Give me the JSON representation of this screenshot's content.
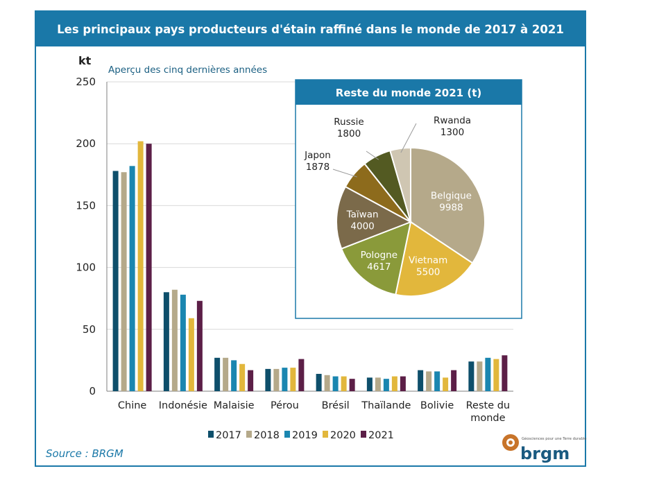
{
  "title": "Les principaux pays producteurs d'étain raffiné dans le monde de 2017 à 2021",
  "source": "Source : BRGM",
  "logo": {
    "name": "brgm",
    "tagline": "Géosciences pour une Terre durable"
  },
  "colors": {
    "frame": "#1a78a8",
    "gridline": "#d9d9d9",
    "axis": "#7f7f7f"
  },
  "chart_data": [
    {
      "type": "bar",
      "unit_label": "kt",
      "subtitle": "Aperçu des cinq dernières années",
      "ylim": [
        0,
        250
      ],
      "yticks": [
        0,
        50,
        100,
        150,
        200,
        250
      ],
      "grid": true,
      "legend_position": "bottom",
      "categories": [
        "Chine",
        "Indonésie",
        "Malaisie",
        "Pérou",
        "Brésil",
        "Thaïlande",
        "Bolivie",
        "Reste du monde"
      ],
      "series": [
        {
          "name": "2017",
          "color": "#0e4f6b",
          "values": [
            178,
            80,
            27,
            18,
            14,
            11,
            17,
            24
          ]
        },
        {
          "name": "2018",
          "color": "#b5a98a",
          "values": [
            177,
            82,
            27,
            18,
            13,
            11,
            16,
            24
          ]
        },
        {
          "name": "2019",
          "color": "#1a86b0",
          "values": [
            182,
            78,
            25,
            19,
            12,
            10,
            16,
            27
          ]
        },
        {
          "name": "2020",
          "color": "#e2b73c",
          "values": [
            202,
            59,
            22,
            19,
            12,
            12,
            11,
            26
          ]
        },
        {
          "name": "2021",
          "color": "#5c1f47",
          "values": [
            200,
            73,
            17,
            26,
            10,
            12,
            17,
            29
          ]
        }
      ]
    },
    {
      "type": "pie",
      "title": "Reste du monde 2021 (t)",
      "slices": [
        {
          "label": "Belgique",
          "value": 9988,
          "color": "#b5a98a"
        },
        {
          "label": "Vietnam",
          "value": 5500,
          "color": "#e2b73c"
        },
        {
          "label": "Pologne",
          "value": 4617,
          "color": "#8a9a3a"
        },
        {
          "label": "Taïwan",
          "value": 4000,
          "color": "#7b6a4a"
        },
        {
          "label": "Japon",
          "value": 1878,
          "color": "#8d6b1c"
        },
        {
          "label": "Russie",
          "value": 1800,
          "color": "#535a22"
        },
        {
          "label": "Rwanda",
          "value": 1300,
          "color": "#cfc6b2"
        }
      ]
    }
  ]
}
